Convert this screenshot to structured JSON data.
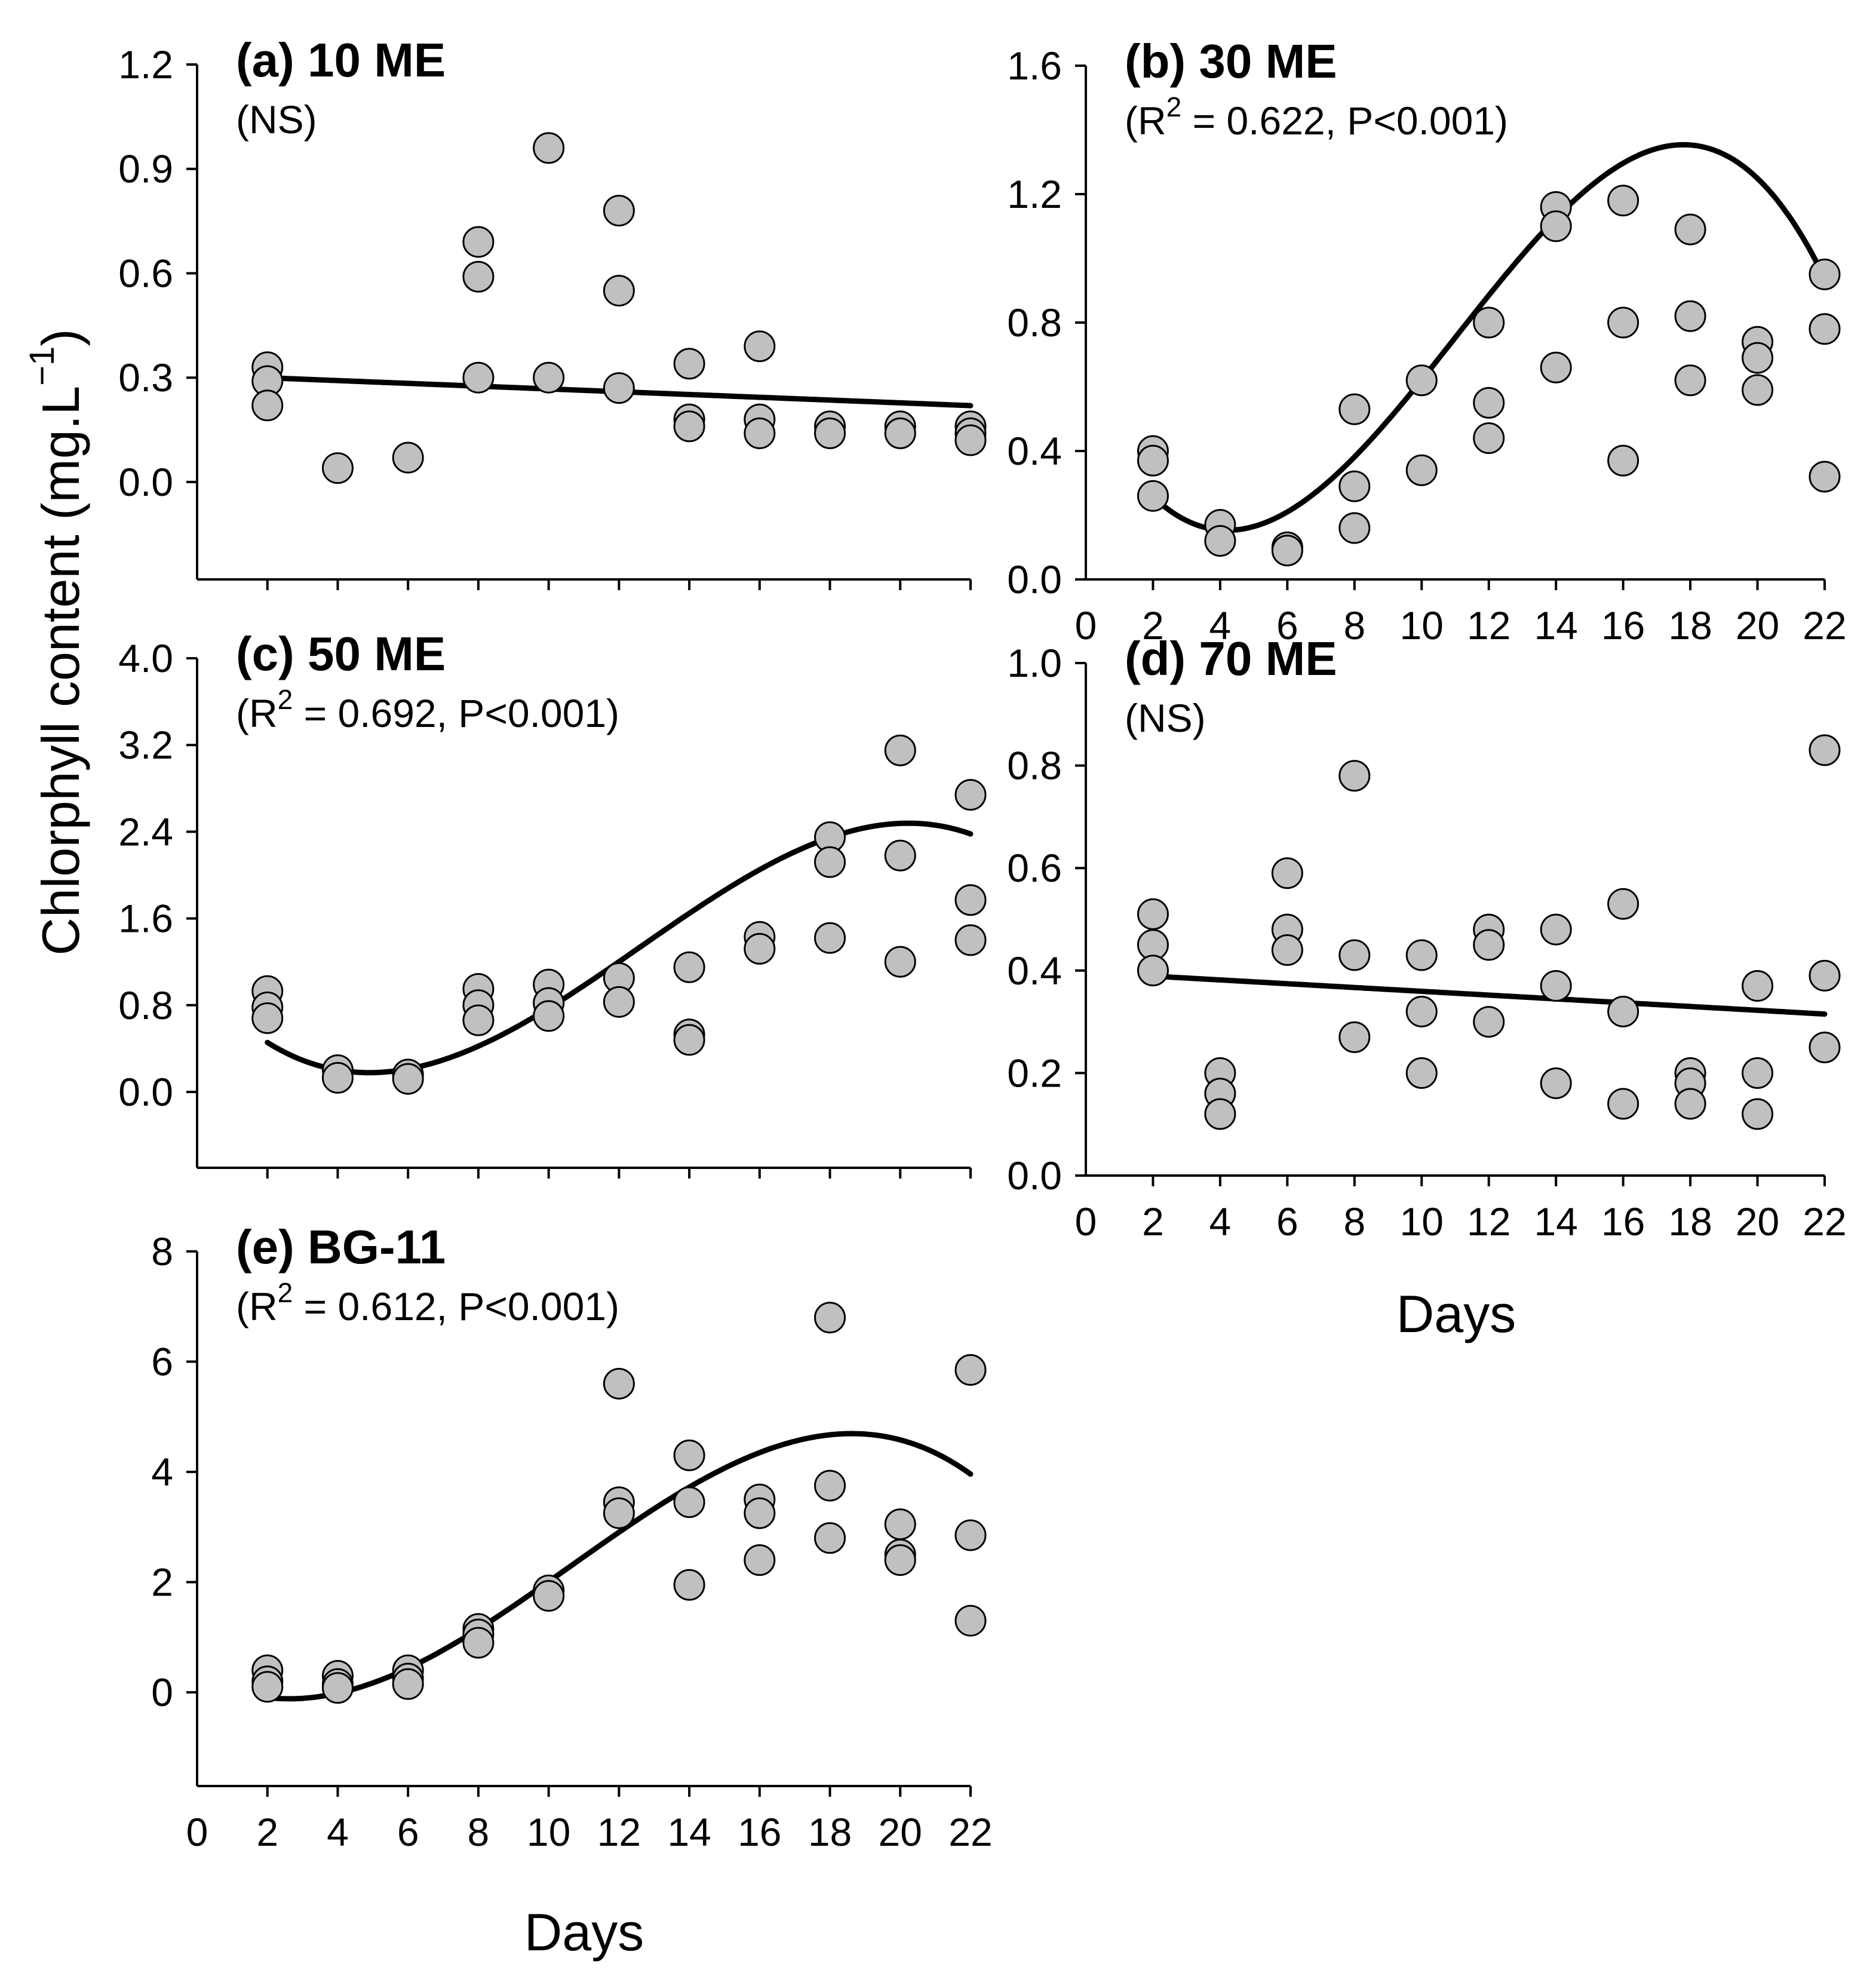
{
  "chart_data": {
    "type": "scatter",
    "ylabel": "Chlorphyll content (mg.L",
    "ylabel_sup": "−1",
    "ylabel_close": ")",
    "xlabel": "Days",
    "xlim": [
      0,
      22
    ],
    "xticks": [
      0,
      2,
      4,
      6,
      8,
      10,
      12,
      14,
      16,
      18,
      20,
      22
    ],
    "panels": [
      {
        "id": "a",
        "title": "(a) 10 ME",
        "stat_prefix": "(NS)",
        "stat_sup": "",
        "stat_suffix": "",
        "ylim": [
          -0.28,
          1.2
        ],
        "yticks": [
          0.0,
          0.3,
          0.6,
          0.9,
          1.2
        ],
        "ytick_labels": [
          "0.0",
          "0.3",
          "0.6",
          "0.9",
          "1.2"
        ],
        "points": [
          [
            2,
            0.33
          ],
          [
            2,
            0.29
          ],
          [
            2,
            0.22
          ],
          [
            4,
            0.04
          ],
          [
            6,
            0.07
          ],
          [
            8,
            0.69
          ],
          [
            8,
            0.59
          ],
          [
            8,
            0.3
          ],
          [
            10,
            0.96
          ],
          [
            10,
            0.3
          ],
          [
            12,
            0.78
          ],
          [
            12,
            0.55
          ],
          [
            12,
            0.27
          ],
          [
            14,
            0.34
          ],
          [
            14,
            0.18
          ],
          [
            14,
            0.16
          ],
          [
            16,
            0.39
          ],
          [
            16,
            0.18
          ],
          [
            16,
            0.14
          ],
          [
            18,
            0.16
          ],
          [
            18,
            0.14
          ],
          [
            20,
            0.16
          ],
          [
            20,
            0.14
          ],
          [
            22,
            0.16
          ],
          [
            22,
            0.14
          ],
          [
            22,
            0.12
          ]
        ],
        "fit": {
          "kind": "linear",
          "coef": [
            0.3075,
            -0.004
          ]
        },
        "show_x_labels": false
      },
      {
        "id": "b",
        "title": "(b) 30 ME",
        "stat_prefix": "(R",
        "stat_sup": "2",
        "stat_suffix": " = 0.622, P<0.001)",
        "ylim": [
          0.0,
          1.6
        ],
        "yticks": [
          0.0,
          0.4,
          0.8,
          1.2,
          1.6
        ],
        "ytick_labels": [
          "0.0",
          "0.4",
          "0.8",
          "1.2",
          "1.6"
        ],
        "points": [
          [
            2,
            0.4
          ],
          [
            2,
            0.37
          ],
          [
            2,
            0.26
          ],
          [
            4,
            0.17
          ],
          [
            4,
            0.12
          ],
          [
            6,
            0.1
          ],
          [
            6,
            0.09
          ],
          [
            8,
            0.53
          ],
          [
            8,
            0.29
          ],
          [
            8,
            0.16
          ],
          [
            10,
            0.62
          ],
          [
            10,
            0.34
          ],
          [
            12,
            0.8
          ],
          [
            12,
            0.55
          ],
          [
            12,
            0.44
          ],
          [
            14,
            1.16
          ],
          [
            14,
            1.1
          ],
          [
            14,
            0.66
          ],
          [
            16,
            1.18
          ],
          [
            16,
            0.8
          ],
          [
            16,
            0.37
          ],
          [
            18,
            1.09
          ],
          [
            18,
            0.82
          ],
          [
            18,
            0.62
          ],
          [
            20,
            0.74
          ],
          [
            20,
            0.69
          ],
          [
            20,
            0.59
          ],
          [
            22,
            0.95
          ],
          [
            22,
            0.78
          ],
          [
            22,
            0.32
          ]
        ],
        "fit": {
          "kind": "cubic",
          "coef": [
            0.5694,
            -0.2149,
            0.03158,
            -0.0009568
          ]
        },
        "show_x_labels": true
      },
      {
        "id": "c",
        "title": "(c) 50 ME",
        "stat_prefix": "(R",
        "stat_sup": "2",
        "stat_suffix": " = 0.692, P<0.001)",
        "ylim": [
          -0.7,
          4.0
        ],
        "yticks": [
          0.0,
          0.8,
          1.6,
          2.4,
          3.2,
          4.0
        ],
        "ytick_labels": [
          "0.0",
          "0.8",
          "1.6",
          "2.4",
          "3.2",
          "4.0"
        ],
        "points": [
          [
            2,
            0.93
          ],
          [
            2,
            0.78
          ],
          [
            2,
            0.68
          ],
          [
            4,
            0.2
          ],
          [
            4,
            0.13
          ],
          [
            6,
            0.16
          ],
          [
            6,
            0.12
          ],
          [
            8,
            0.95
          ],
          [
            8,
            0.8
          ],
          [
            8,
            0.66
          ],
          [
            10,
            0.99
          ],
          [
            10,
            0.82
          ],
          [
            10,
            0.7
          ],
          [
            12,
            1.05
          ],
          [
            12,
            0.83
          ],
          [
            14,
            1.15
          ],
          [
            14,
            0.53
          ],
          [
            14,
            0.48
          ],
          [
            16,
            1.43
          ],
          [
            16,
            1.32
          ],
          [
            18,
            2.35
          ],
          [
            18,
            2.12
          ],
          [
            18,
            1.42
          ],
          [
            20,
            3.15
          ],
          [
            20,
            2.18
          ],
          [
            20,
            1.2
          ],
          [
            22,
            2.74
          ],
          [
            22,
            1.77
          ],
          [
            22,
            1.4
          ]
        ],
        "fit": {
          "kind": "cubic",
          "coef": [
            1.033,
            -0.3798,
            0.04814,
            -0.001277
          ]
        },
        "show_x_labels": false
      },
      {
        "id": "d",
        "title": "(d) 70 ME",
        "stat_prefix": "(NS)",
        "stat_sup": "",
        "stat_suffix": "",
        "ylim": [
          0.0,
          1.0
        ],
        "yticks": [
          0.0,
          0.2,
          0.4,
          0.6,
          0.8,
          1.0
        ],
        "ytick_labels": [
          "0.0",
          "0.2",
          "0.4",
          "0.6",
          "0.8",
          "1.0"
        ],
        "points": [
          [
            2,
            0.51
          ],
          [
            2,
            0.45
          ],
          [
            2,
            0.4
          ],
          [
            4,
            0.2
          ],
          [
            4,
            0.16
          ],
          [
            4,
            0.12
          ],
          [
            6,
            0.59
          ],
          [
            6,
            0.48
          ],
          [
            6,
            0.44
          ],
          [
            8,
            0.78
          ],
          [
            8,
            0.43
          ],
          [
            8,
            0.27
          ],
          [
            10,
            0.43
          ],
          [
            10,
            0.32
          ],
          [
            10,
            0.2
          ],
          [
            12,
            0.48
          ],
          [
            12,
            0.45
          ],
          [
            12,
            0.3
          ],
          [
            14,
            0.48
          ],
          [
            14,
            0.37
          ],
          [
            14,
            0.18
          ],
          [
            16,
            0.53
          ],
          [
            16,
            0.32
          ],
          [
            16,
            0.14
          ],
          [
            18,
            0.2
          ],
          [
            18,
            0.18
          ],
          [
            18,
            0.14
          ],
          [
            20,
            0.37
          ],
          [
            20,
            0.2
          ],
          [
            20,
            0.12
          ],
          [
            22,
            0.83
          ],
          [
            22,
            0.39
          ],
          [
            22,
            0.25
          ]
        ],
        "fit": {
          "kind": "linear",
          "coef": [
            0.3965,
            -0.0037
          ]
        },
        "show_x_labels": true
      },
      {
        "id": "e",
        "title": "(e) BG-11",
        "stat_prefix": "(R",
        "stat_sup": "2",
        "stat_suffix": " = 0.612, P<0.001)",
        "ylim": [
          -1.7,
          8.0
        ],
        "yticks": [
          0,
          2,
          4,
          6,
          8
        ],
        "ytick_labels": [
          "0",
          "2",
          "4",
          "6",
          "8"
        ],
        "points": [
          [
            2,
            0.4
          ],
          [
            2,
            0.2
          ],
          [
            2,
            0.1
          ],
          [
            4,
            0.3
          ],
          [
            4,
            0.15
          ],
          [
            4,
            0.08
          ],
          [
            6,
            0.4
          ],
          [
            6,
            0.25
          ],
          [
            6,
            0.15
          ],
          [
            8,
            1.15
          ],
          [
            8,
            1.05
          ],
          [
            8,
            0.9
          ],
          [
            10,
            1.85
          ],
          [
            10,
            1.75
          ],
          [
            12,
            5.6
          ],
          [
            12,
            3.45
          ],
          [
            12,
            3.25
          ],
          [
            14,
            4.3
          ],
          [
            14,
            3.45
          ],
          [
            14,
            1.95
          ],
          [
            16,
            3.5
          ],
          [
            16,
            3.25
          ],
          [
            16,
            2.4
          ],
          [
            18,
            6.8
          ],
          [
            18,
            3.75
          ],
          [
            18,
            2.8
          ],
          [
            20,
            3.05
          ],
          [
            20,
            2.5
          ],
          [
            20,
            2.4
          ],
          [
            22,
            5.85
          ],
          [
            22,
            2.85
          ],
          [
            22,
            1.3
          ]
        ],
        "fit": {
          "kind": "cubic",
          "coef": [
            0.3125,
            -0.3438,
            0.07484,
            -0.002349
          ]
        },
        "show_x_labels": true
      }
    ]
  }
}
